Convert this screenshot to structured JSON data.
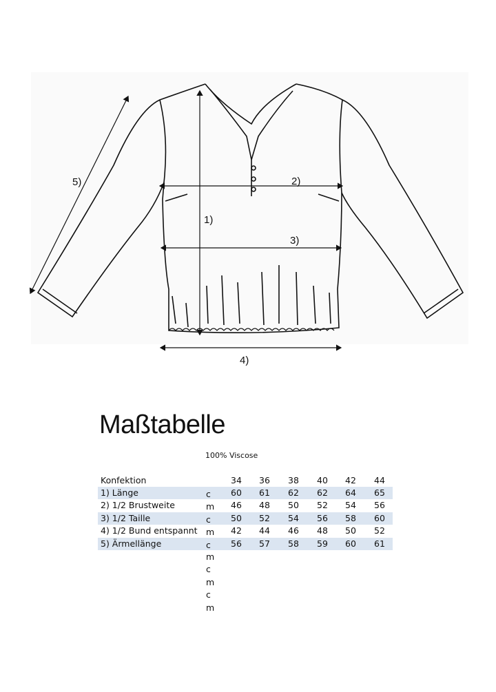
{
  "sketch": {
    "labels": [
      "1)",
      "2)",
      "3)",
      "4)",
      "5)"
    ]
  },
  "title": "Maßtabelle",
  "material": "100% Viscose",
  "table": {
    "header": {
      "label": "Konfektion",
      "sizes": [
        "34",
        "36",
        "38",
        "40",
        "42",
        "44"
      ]
    },
    "rows": [
      {
        "label": "1) Länge",
        "unit": "c",
        "values": [
          "60",
          "61",
          "62",
          "62",
          "64",
          "65"
        ]
      },
      {
        "label": "2) 1/2 Brustweite",
        "unit": "m",
        "values": [
          "46",
          "48",
          "50",
          "52",
          "54",
          "56"
        ]
      },
      {
        "label": "3) 1/2 Taille",
        "unit": "c",
        "values": [
          "50",
          "52",
          "54",
          "56",
          "58",
          "60"
        ]
      },
      {
        "label": "4) 1/2 Bund entspannt",
        "unit": "m",
        "values": [
          "42",
          "44",
          "46",
          "48",
          "50",
          "52"
        ]
      },
      {
        "label": "5) Ärmellänge",
        "unit": "c",
        "values": [
          "56",
          "57",
          "58",
          "59",
          "60",
          "61"
        ]
      }
    ],
    "extra_units": [
      "m",
      "c",
      "m",
      "c",
      "m"
    ],
    "highlight_color": "#dbe5f1"
  }
}
